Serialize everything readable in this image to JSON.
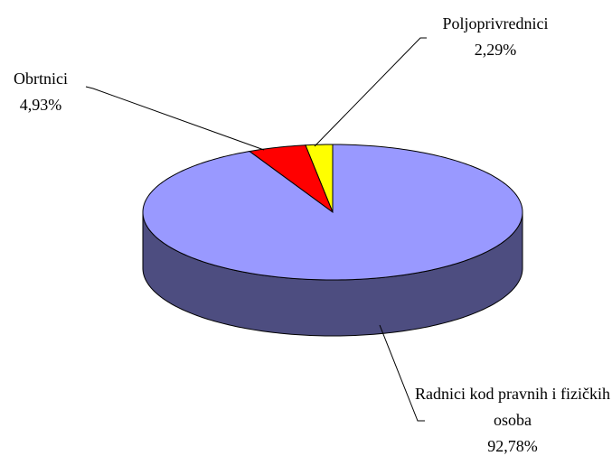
{
  "chart_data": {
    "type": "pie3d",
    "categories": [
      "Poljoprivrednici",
      "Obrtnici",
      "Radnici kod pravnih i fizičkih osoba"
    ],
    "values": [
      2.29,
      4.93,
      92.78
    ],
    "value_labels": [
      "2,29%",
      "4,93%",
      "92,78%"
    ],
    "colors": [
      "#ffff00",
      "#ff0000",
      "#9999ff"
    ]
  }
}
